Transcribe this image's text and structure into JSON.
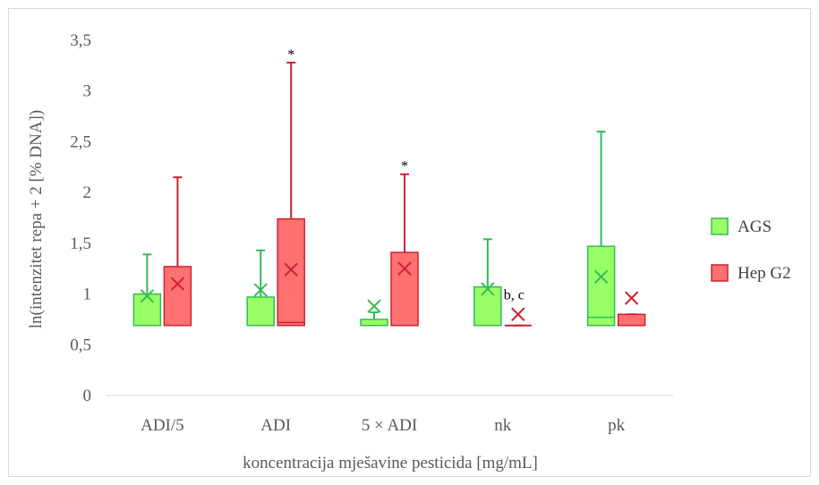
{
  "chart_data": {
    "type": "boxplot",
    "ylabel": "ln(intenzitet repa + 2 [% DNA])",
    "xlabel": "koncentracija mješavine pesticida [mg/mL]",
    "ylim": [
      0,
      3.5
    ],
    "yticks": [
      "0",
      "0,5",
      "1",
      "1,5",
      "2",
      "2,5",
      "3",
      "3,5"
    ],
    "ytick_values": [
      0,
      0.5,
      1,
      1.5,
      2,
      2.5,
      3,
      3.5
    ],
    "grid": false,
    "legend_position": "right",
    "categories": [
      "ADI/5",
      "ADI",
      "5 × ADI",
      "nk",
      "pk"
    ],
    "series": [
      {
        "name": "AGS",
        "color": "#99ff66",
        "stroke": "#33bb55",
        "boxes": [
          {
            "min": 0.69,
            "q1": 0.69,
            "median": 0.69,
            "q3": 1.0,
            "max": 1.39,
            "mean": 0.98
          },
          {
            "min": 0.69,
            "q1": 0.69,
            "median": 0.69,
            "q3": 0.97,
            "max": 1.43,
            "mean": 1.04
          },
          {
            "min": 0.69,
            "q1": 0.69,
            "median": 0.69,
            "q3": 0.75,
            "max": 0.82,
            "mean": 0.88
          },
          {
            "min": 0.69,
            "q1": 0.69,
            "median": 0.69,
            "q3": 1.07,
            "max": 1.54,
            "mean": 1.05
          },
          {
            "min": 0.69,
            "q1": 0.69,
            "median": 0.77,
            "q3": 1.47,
            "max": 2.6,
            "mean": 1.17
          }
        ]
      },
      {
        "name": "Hep G2",
        "color": "#ff7070",
        "stroke": "#cc2233",
        "boxes": [
          {
            "min": 0.69,
            "q1": 0.69,
            "median": 0.69,
            "q3": 1.27,
            "max": 2.15,
            "mean": 1.1
          },
          {
            "min": 0.69,
            "q1": 0.69,
            "median": 0.72,
            "q3": 1.74,
            "max": 3.28,
            "mean": 1.24
          },
          {
            "min": 0.69,
            "q1": 0.69,
            "median": 0.69,
            "q3": 1.41,
            "max": 2.18,
            "mean": 1.25
          },
          {
            "min": 0.69,
            "q1": 0.69,
            "median": 0.69,
            "q3": 0.69,
            "max": 0.69,
            "mean": 0.8
          },
          {
            "min": 0.69,
            "q1": 0.69,
            "median": 0.69,
            "q3": 0.8,
            "max": 0.8,
            "mean": 0.96
          }
        ]
      }
    ],
    "annotations": [
      {
        "text": "*",
        "category": "ADI",
        "series": "Hep G2",
        "y": 3.28
      },
      {
        "text": "*",
        "category": "5 × ADI",
        "series": "Hep G2",
        "y": 2.18
      },
      {
        "text": "b, c",
        "category": "nk",
        "series": "AGS",
        "y": 1.0
      }
    ]
  }
}
